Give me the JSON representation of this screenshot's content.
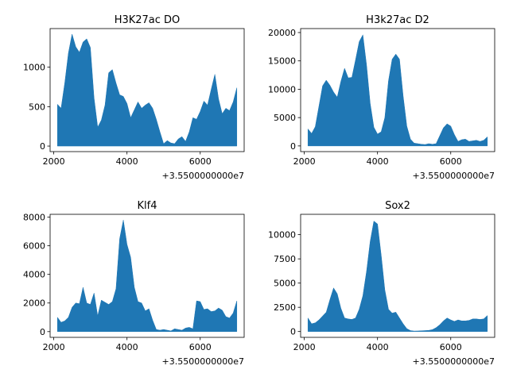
{
  "chart_data": [
    {
      "type": "area",
      "title": "H3K27ac DO",
      "x_offset_label": "+3.5500000000e7",
      "xlim": [
        1900,
        7200
      ],
      "ylim": [
        -70,
        1490
      ],
      "xticks": [
        2000,
        4000,
        6000
      ],
      "yticks": [
        0,
        500,
        1000
      ],
      "x": [
        2100,
        2200,
        2300,
        2400,
        2500,
        2600,
        2700,
        2800,
        2900,
        3000,
        3100,
        3200,
        3300,
        3400,
        3500,
        3600,
        3700,
        3800,
        3900,
        4000,
        4100,
        4200,
        4300,
        4400,
        4500,
        4600,
        4700,
        4800,
        4900,
        5000,
        5100,
        5200,
        5300,
        5400,
        5500,
        5600,
        5700,
        5800,
        5900,
        6000,
        6100,
        6200,
        6300,
        6400,
        6500,
        6600,
        6700,
        6800,
        6900,
        7000
      ],
      "values": [
        530,
        480,
        800,
        1180,
        1420,
        1260,
        1190,
        1320,
        1360,
        1250,
        610,
        240,
        330,
        520,
        930,
        970,
        800,
        650,
        630,
        540,
        360,
        460,
        560,
        480,
        520,
        550,
        480,
        340,
        180,
        30,
        70,
        40,
        30,
        90,
        120,
        60,
        180,
        360,
        340,
        440,
        570,
        520,
        720,
        910,
        600,
        410,
        480,
        450,
        560,
        740
      ]
    },
    {
      "type": "area",
      "title": "H3k27ac D2",
      "x_offset_label": "+3.5500000000e7",
      "xlim": [
        1900,
        7200
      ],
      "ylim": [
        -1000,
        20700
      ],
      "xticks": [
        2000,
        4000,
        6000
      ],
      "yticks": [
        0,
        5000,
        10000,
        15000,
        20000
      ],
      "x": [
        2100,
        2200,
        2300,
        2400,
        2500,
        2600,
        2700,
        2800,
        2900,
        3000,
        3100,
        3200,
        3300,
        3400,
        3500,
        3600,
        3700,
        3800,
        3900,
        4000,
        4100,
        4200,
        4300,
        4400,
        4500,
        4600,
        4700,
        4800,
        4900,
        5000,
        5100,
        5200,
        5300,
        5400,
        5500,
        5600,
        5700,
        5800,
        5900,
        6000,
        6100,
        6200,
        6300,
        6400,
        6500,
        6600,
        6700,
        6800,
        6900,
        7000
      ],
      "values": [
        3000,
        2200,
        3400,
        7000,
        10600,
        11600,
        10700,
        9500,
        8600,
        11400,
        13700,
        12000,
        12100,
        15200,
        18400,
        19600,
        14300,
        7500,
        3300,
        2100,
        2500,
        5000,
        11500,
        15300,
        16200,
        15300,
        8800,
        3500,
        1200,
        500,
        400,
        300,
        250,
        400,
        300,
        400,
        1800,
        3200,
        3900,
        3500,
        2000,
        800,
        1100,
        1200,
        800,
        900,
        1000,
        800,
        1000,
        1600
      ]
    },
    {
      "type": "area",
      "title": "Klf4",
      "x_offset_label": "+3.5500000000e7",
      "xlim": [
        1900,
        7200
      ],
      "ylim": [
        -400,
        8200
      ],
      "xticks": [
        2000,
        4000,
        6000
      ],
      "yticks": [
        0,
        2000,
        4000,
        6000,
        8000
      ],
      "x": [
        2100,
        2200,
        2300,
        2400,
        2500,
        2600,
        2700,
        2800,
        2900,
        3000,
        3100,
        3200,
        3300,
        3400,
        3500,
        3600,
        3700,
        3800,
        3900,
        4000,
        4100,
        4200,
        4300,
        4400,
        4500,
        4600,
        4700,
        4800,
        4900,
        5000,
        5100,
        5200,
        5300,
        5400,
        5500,
        5600,
        5700,
        5800,
        5900,
        6000,
        6100,
        6200,
        6300,
        6400,
        6500,
        6600,
        6700,
        6800,
        6900,
        7000
      ],
      "values": [
        1000,
        650,
        750,
        1000,
        1700,
        2000,
        1950,
        3100,
        2000,
        1900,
        2700,
        1100,
        2200,
        2050,
        1900,
        2100,
        3000,
        6500,
        7800,
        6100,
        5200,
        3100,
        2100,
        2000,
        1450,
        1600,
        800,
        150,
        100,
        150,
        100,
        50,
        200,
        150,
        100,
        250,
        300,
        200,
        2150,
        2100,
        1550,
        1600,
        1400,
        1450,
        1650,
        1500,
        1050,
        950,
        1300,
        2150
      ]
    },
    {
      "type": "area",
      "title": "Sox2",
      "x_offset_label": "+3.5500000000e7",
      "xlim": [
        1900,
        7200
      ],
      "ylim": [
        -600,
        12100
      ],
      "xticks": [
        2000,
        4000,
        6000
      ],
      "yticks": [
        0,
        2500,
        5000,
        7500,
        10000
      ],
      "x": [
        2100,
        2200,
        2300,
        2400,
        2500,
        2600,
        2700,
        2800,
        2900,
        3000,
        3100,
        3200,
        3300,
        3400,
        3500,
        3600,
        3700,
        3800,
        3900,
        4000,
        4100,
        4200,
        4300,
        4400,
        4500,
        4600,
        4700,
        4800,
        4900,
        5000,
        5100,
        5200,
        5300,
        5400,
        5500,
        5600,
        5700,
        5800,
        5900,
        6000,
        6100,
        6200,
        6300,
        6400,
        6500,
        6600,
        6700,
        6800,
        6900,
        7000
      ],
      "values": [
        1400,
        800,
        900,
        1200,
        1600,
        2000,
        3300,
        4500,
        3900,
        2400,
        1400,
        1300,
        1250,
        1400,
        2300,
        3700,
        6200,
        9300,
        11400,
        11100,
        7900,
        4300,
        2300,
        1900,
        2000,
        1400,
        800,
        300,
        100,
        50,
        60,
        80,
        100,
        120,
        200,
        400,
        700,
        1100,
        1400,
        1200,
        1050,
        1200,
        1100,
        1100,
        1150,
        1300,
        1300,
        1250,
        1300,
        1650
      ]
    }
  ],
  "colors": {
    "fill": "#1f77b4",
    "axes": "#000000"
  }
}
